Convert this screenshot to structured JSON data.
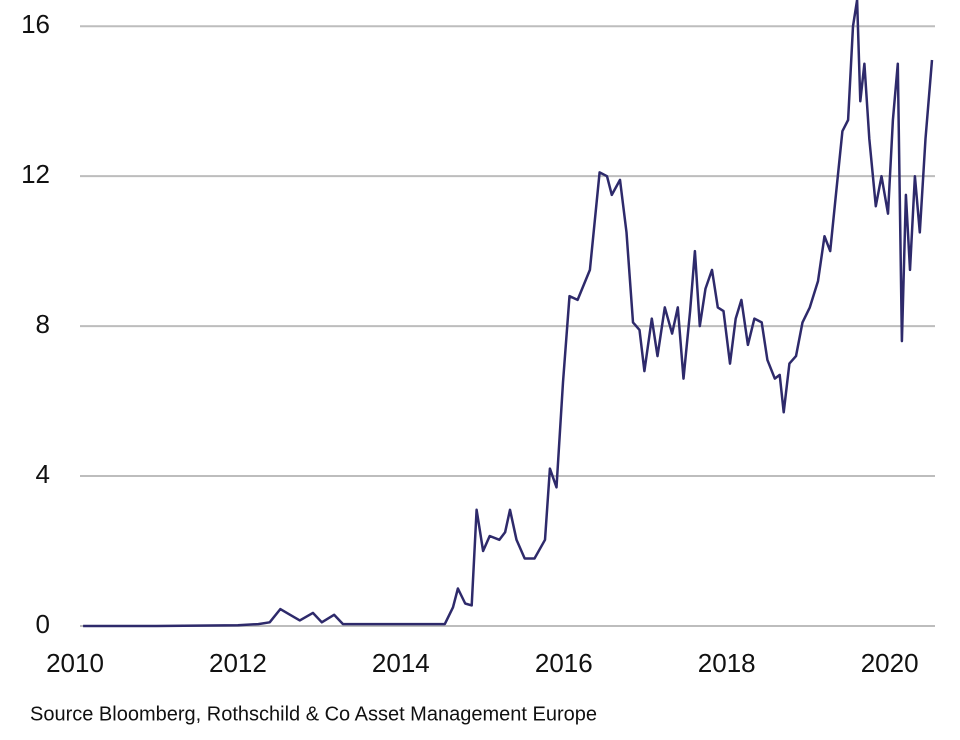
{
  "chart_data": {
    "type": "line",
    "source": "Source Bloomberg, Rothschild & Co Asset Management Europe",
    "x": [
      2010.1,
      2011.0,
      2012.0,
      2012.25,
      2012.39,
      2012.52,
      2012.64,
      2012.76,
      2012.92,
      2013.03,
      2013.18,
      2013.29,
      2014.54,
      2014.64,
      2014.7,
      2014.79,
      2014.87,
      2014.93,
      2015.01,
      2015.09,
      2015.21,
      2015.28,
      2015.34,
      2015.42,
      2015.52,
      2015.64,
      2015.77,
      2015.83,
      2015.91,
      2015.99,
      2016.07,
      2016.17,
      2016.32,
      2016.44,
      2016.53,
      2016.59,
      2016.69,
      2016.77,
      2016.85,
      2016.93,
      2016.99,
      2017.08,
      2017.15,
      2017.24,
      2017.33,
      2017.4,
      2017.47,
      2017.55,
      2017.61,
      2017.67,
      2017.74,
      2017.82,
      2017.89,
      2017.96,
      2018.04,
      2018.11,
      2018.18,
      2018.26,
      2018.34,
      2018.43,
      2018.5,
      2018.59,
      2018.65,
      2018.7,
      2018.77,
      2018.85,
      2018.93,
      2019.02,
      2019.12,
      2019.2,
      2019.27,
      2019.34,
      2019.42,
      2019.49,
      2019.55,
      2019.6,
      2019.64,
      2019.69,
      2019.75,
      2019.83,
      2019.9,
      2019.98,
      2020.04,
      2020.1,
      2020.15,
      2020.2,
      2020.25,
      2020.31,
      2020.37,
      2020.44,
      2020.52
    ],
    "values": [
      0,
      0,
      0.02,
      0.05,
      0.1,
      0.45,
      0.3,
      0.15,
      0.35,
      0.1,
      0.3,
      0.05,
      0.05,
      0.5,
      1.0,
      0.6,
      0.55,
      3.1,
      2.0,
      2.4,
      2.3,
      2.5,
      3.1,
      2.3,
      1.8,
      1.8,
      2.3,
      4.2,
      3.7,
      6.5,
      8.8,
      8.7,
      9.5,
      12.1,
      12.0,
      11.5,
      11.9,
      10.5,
      8.1,
      7.9,
      6.8,
      8.2,
      7.2,
      8.5,
      7.8,
      8.5,
      6.6,
      8.4,
      10.0,
      8.0,
      9.0,
      9.5,
      8.5,
      8.4,
      7.0,
      8.2,
      8.7,
      7.5,
      8.2,
      8.1,
      7.1,
      6.6,
      6.7,
      5.7,
      7.0,
      7.2,
      8.1,
      8.5,
      9.2,
      10.4,
      10.0,
      11.5,
      13.2,
      13.5,
      16.0,
      16.7,
      14.0,
      15.0,
      13.0,
      11.2,
      12.0,
      11.0,
      13.5,
      15.0,
      7.6,
      11.5,
      9.5,
      12.0,
      10.5,
      13.0,
      15.1
    ],
    "color": "#2e2a6b",
    "xlim": [
      2010,
      2020.52
    ],
    "xticks": [
      2010,
      2012,
      2014,
      2016,
      2018,
      2020
    ],
    "ylim": [
      0,
      16.7
    ],
    "yticks": [
      0,
      4,
      8,
      12,
      16
    ],
    "grid": true
  }
}
